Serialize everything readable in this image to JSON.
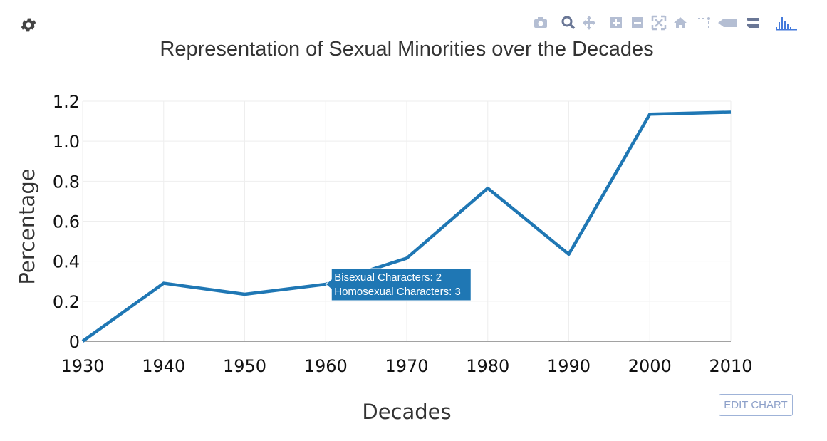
{
  "toolbar": {
    "settings_icon": "gear-icon",
    "buttons": [
      {
        "icon": "camera-icon",
        "name": "download-png-button"
      },
      {
        "icon": "zoom-icon",
        "name": "zoom-button"
      },
      {
        "icon": "pan-icon",
        "name": "pan-button"
      },
      {
        "icon": "zoom-in-icon",
        "name": "zoom-in-button"
      },
      {
        "icon": "zoom-out-icon",
        "name": "zoom-out-button"
      },
      {
        "icon": "autoscale-icon",
        "name": "autoscale-button"
      },
      {
        "icon": "home-icon",
        "name": "reset-axes-button"
      },
      {
        "icon": "spike-lines-icon",
        "name": "toggle-spike-lines-button"
      },
      {
        "icon": "hover-closest-icon",
        "name": "hover-closest-button"
      },
      {
        "icon": "hover-compare-icon",
        "name": "hover-compare-button"
      },
      {
        "icon": "plotly-logo-icon",
        "name": "plotly-logo-button"
      }
    ],
    "edit_chart_label": "EDIT CHART"
  },
  "chart_data": {
    "type": "line",
    "title": "Representation of Sexual Minorities over the Decades",
    "xlabel": "Decades",
    "ylabel": "Percentage",
    "x": [
      1930,
      1940,
      1950,
      1960,
      1970,
      1980,
      1990,
      2000,
      2010
    ],
    "x_tick_labels": [
      "1930",
      "1940",
      "1950",
      "1960",
      "1970",
      "1980",
      "1990",
      "2000",
      "2010"
    ],
    "y_ticks": [
      0,
      0.2,
      0.4,
      0.6,
      0.8,
      1.0,
      1.2
    ],
    "y_tick_labels": [
      "0",
      "0.2",
      "0.4",
      "0.6",
      "0.8",
      "1.0",
      "1.2"
    ],
    "series": [
      {
        "values": [
          0,
          0.29,
          0.235,
          0.285,
          0.415,
          0.765,
          0.435,
          1.135,
          1.145
        ],
        "color": "#1f77b4"
      }
    ],
    "xlim": [
      1930,
      2010
    ],
    "ylim": [
      0,
      1.2
    ],
    "grid": true,
    "hover": {
      "x": 1960,
      "lines": [
        "Bisexual Characters: 2",
        "Homosexual Characters: 3"
      ],
      "color": "#1f77b4"
    }
  }
}
